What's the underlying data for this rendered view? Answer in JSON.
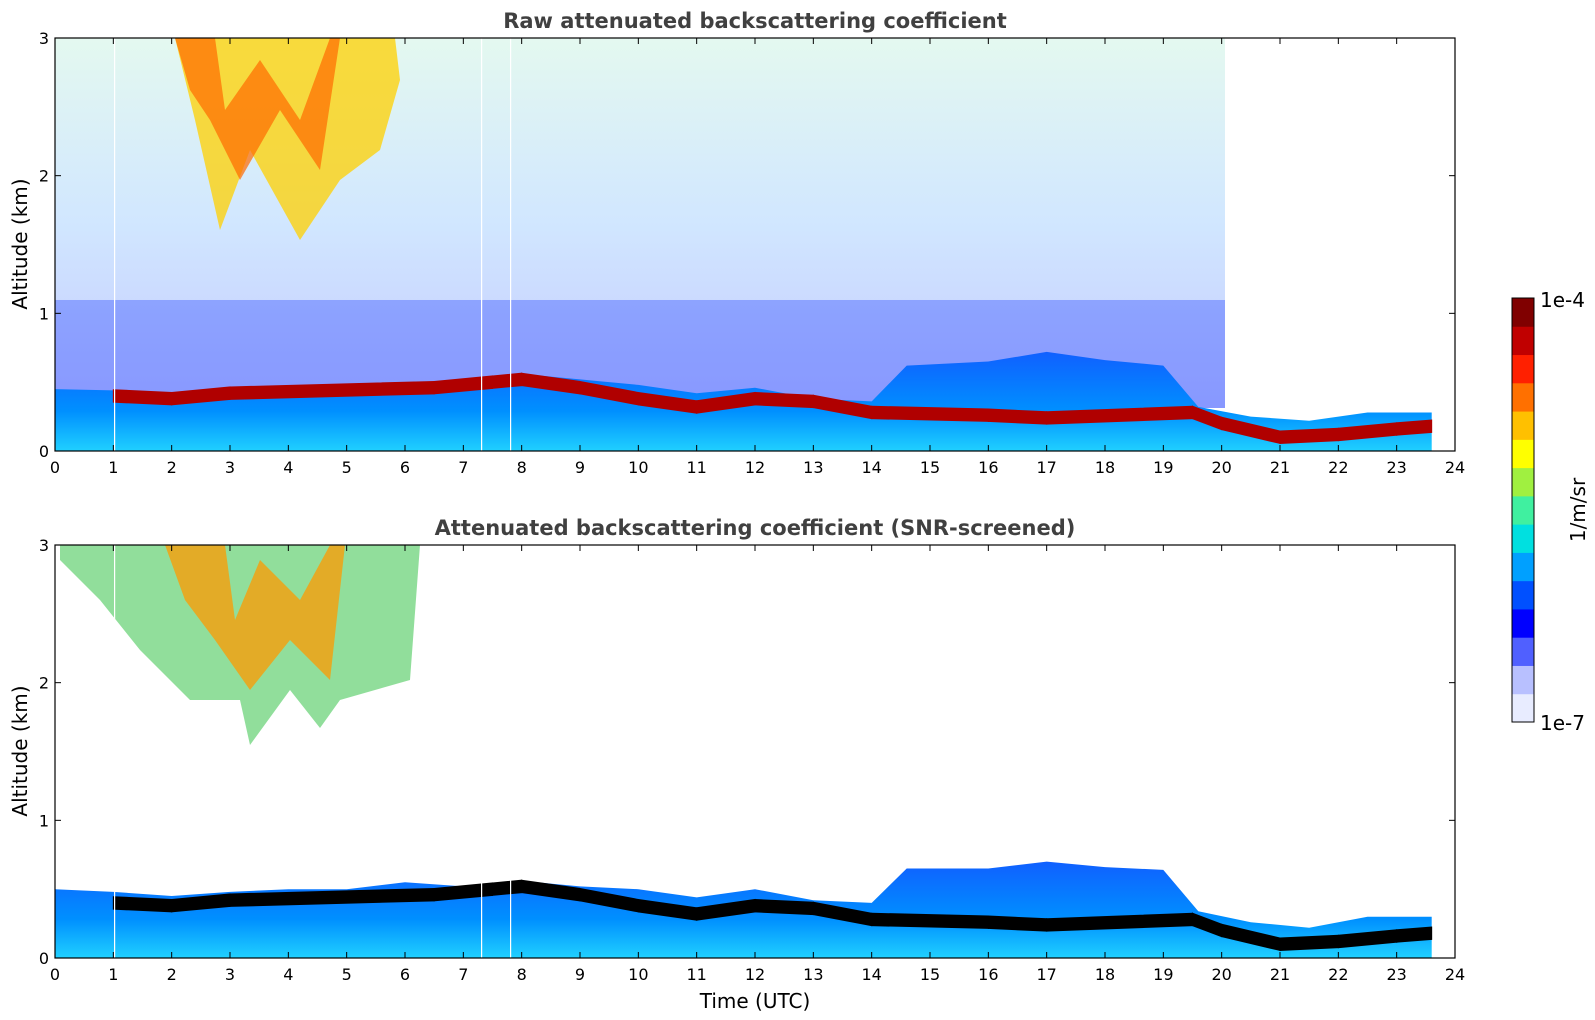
{
  "chart_data": [
    {
      "type": "heatmap",
      "title": "Raw attenuated backscattering coefficient",
      "xlabel": "",
      "ylabel": "Altitude (km)",
      "xlim": [
        0,
        24
      ],
      "ylim": [
        0,
        3
      ],
      "xticks": [
        "0",
        "1",
        "2",
        "3",
        "4",
        "5",
        "6",
        "7",
        "8",
        "9",
        "10",
        "11",
        "12",
        "13",
        "14",
        "15",
        "16",
        "17",
        "18",
        "19",
        "20",
        "21",
        "22",
        "23",
        "24"
      ],
      "yticks": [
        "0",
        "1",
        "2",
        "3"
      ],
      "boundary_layer_top_km": [
        [
          0,
          0.45
        ],
        [
          1,
          0.44
        ],
        [
          2,
          0.4
        ],
        [
          3,
          0.42
        ],
        [
          4,
          0.42
        ],
        [
          5,
          0.42
        ],
        [
          6,
          0.46
        ],
        [
          7,
          0.5
        ],
        [
          8,
          0.56
        ],
        [
          9,
          0.52
        ],
        [
          10,
          0.48
        ],
        [
          11,
          0.42
        ],
        [
          12,
          0.46
        ],
        [
          13,
          0.38
        ],
        [
          14,
          0.36
        ],
        [
          14.6,
          0.62
        ],
        [
          16,
          0.65
        ],
        [
          17,
          0.72
        ],
        [
          18,
          0.66
        ],
        [
          19,
          0.62
        ],
        [
          19.6,
          0.32
        ],
        [
          20.5,
          0.25
        ],
        [
          21.5,
          0.22
        ],
        [
          22.5,
          0.28
        ],
        [
          23.6,
          0.28
        ]
      ],
      "high_signal_layer_km": [
        [
          1,
          0.4
        ],
        [
          2,
          0.38
        ],
        [
          3,
          0.42
        ],
        [
          6.5,
          0.46
        ],
        [
          7.5,
          0.5
        ],
        [
          8,
          0.52
        ],
        [
          9,
          0.46
        ],
        [
          10,
          0.38
        ],
        [
          11,
          0.32
        ],
        [
          12,
          0.38
        ],
        [
          13,
          0.36
        ],
        [
          14,
          0.28
        ],
        [
          16,
          0.26
        ],
        [
          17,
          0.24
        ],
        [
          19.5,
          0.28
        ],
        [
          20,
          0.2
        ],
        [
          21,
          0.1
        ],
        [
          22,
          0.12
        ],
        [
          23,
          0.16
        ],
        [
          23.6,
          0.18
        ]
      ]
    },
    {
      "type": "heatmap",
      "title": "Attenuated backscattering coefficient (SNR-screened)",
      "xlabel": "Time (UTC)",
      "ylabel": "Altitude (km)",
      "xlim": [
        0,
        24
      ],
      "ylim": [
        0,
        3
      ],
      "xticks": [
        "0",
        "1",
        "2",
        "3",
        "4",
        "5",
        "6",
        "7",
        "8",
        "9",
        "10",
        "11",
        "12",
        "13",
        "14",
        "15",
        "16",
        "17",
        "18",
        "19",
        "20",
        "21",
        "22",
        "23",
        "24"
      ],
      "yticks": [
        "0",
        "1",
        "2",
        "3"
      ],
      "boundary_layer_top_km": [
        [
          0,
          0.5
        ],
        [
          1,
          0.48
        ],
        [
          2,
          0.45
        ],
        [
          3,
          0.48
        ],
        [
          4,
          0.5
        ],
        [
          5,
          0.5
        ],
        [
          6,
          0.55
        ],
        [
          7,
          0.52
        ],
        [
          8,
          0.56
        ],
        [
          9,
          0.52
        ],
        [
          10,
          0.5
        ],
        [
          11,
          0.44
        ],
        [
          12,
          0.5
        ],
        [
          13,
          0.42
        ],
        [
          14,
          0.4
        ],
        [
          14.6,
          0.65
        ],
        [
          16,
          0.65
        ],
        [
          17,
          0.7
        ],
        [
          18,
          0.66
        ],
        [
          19,
          0.64
        ],
        [
          19.6,
          0.34
        ],
        [
          20.5,
          0.26
        ],
        [
          21.5,
          0.22
        ],
        [
          22.5,
          0.3
        ],
        [
          23.6,
          0.3
        ]
      ],
      "high_signal_layer_km": [
        [
          1,
          0.4
        ],
        [
          2,
          0.38
        ],
        [
          3,
          0.42
        ],
        [
          6.5,
          0.46
        ],
        [
          7.5,
          0.5
        ],
        [
          8,
          0.52
        ],
        [
          9,
          0.46
        ],
        [
          10,
          0.38
        ],
        [
          11,
          0.32
        ],
        [
          12,
          0.38
        ],
        [
          13,
          0.36
        ],
        [
          14,
          0.28
        ],
        [
          16,
          0.26
        ],
        [
          17,
          0.24
        ],
        [
          19.5,
          0.28
        ],
        [
          20,
          0.2
        ],
        [
          21,
          0.1
        ],
        [
          22,
          0.12
        ],
        [
          23,
          0.16
        ],
        [
          23.6,
          0.18
        ]
      ]
    }
  ],
  "colorbar": {
    "label": "1/m/sr",
    "max_label": "1e-4",
    "min_label": "1e-7",
    "colors": [
      "#e8ecff",
      "#b8c0ff",
      "#5060ff",
      "#0000ff",
      "#0050ff",
      "#00a0ff",
      "#00e0e0",
      "#40f0a0",
      "#a0f040",
      "#ffff00",
      "#ffc000",
      "#ff7000",
      "#ff2000",
      "#c00000",
      "#800000"
    ]
  }
}
